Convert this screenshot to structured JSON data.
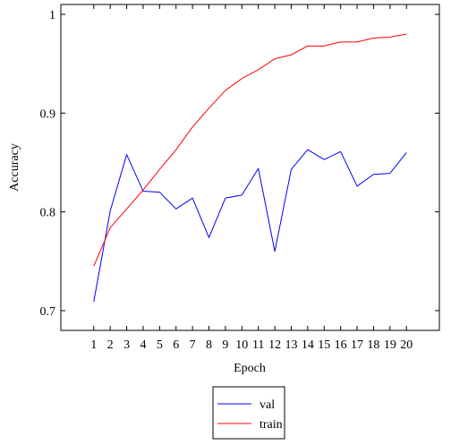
{
  "chart_data": {
    "type": "line",
    "title": "",
    "xlabel": "Epoch",
    "ylabel": "Accuracy",
    "x": [
      1,
      2,
      3,
      4,
      5,
      6,
      7,
      8,
      9,
      10,
      11,
      12,
      13,
      14,
      15,
      16,
      17,
      18,
      19,
      20
    ],
    "xticks": [
      "1",
      "2",
      "3",
      "4",
      "5",
      "6",
      "7",
      "8",
      "9",
      "10",
      "11",
      "12",
      "13",
      "14",
      "15",
      "16",
      "17",
      "18",
      "19",
      "20"
    ],
    "yticks": [
      0.7,
      0.8,
      0.9,
      1
    ],
    "ytick_labels": [
      "0.7",
      "0.8",
      "0.9",
      "1"
    ],
    "xlim": [
      -1,
      22
    ],
    "ylim": [
      0.68,
      1.01
    ],
    "grid": false,
    "legend_position": "below",
    "series": [
      {
        "name": "val",
        "color": "#0000ff",
        "values": [
          0.709,
          0.801,
          0.858,
          0.821,
          0.82,
          0.803,
          0.814,
          0.774,
          0.814,
          0.817,
          0.844,
          0.76,
          0.843,
          0.863,
          0.853,
          0.861,
          0.826,
          0.838,
          0.839,
          0.86
        ]
      },
      {
        "name": "train",
        "color": "#ff0000",
        "values": [
          0.745,
          0.784,
          0.803,
          0.822,
          0.843,
          0.863,
          0.886,
          0.905,
          0.923,
          0.935,
          0.944,
          0.955,
          0.959,
          0.968,
          0.968,
          0.972,
          0.972,
          0.976,
          0.977,
          0.98
        ]
      }
    ]
  }
}
